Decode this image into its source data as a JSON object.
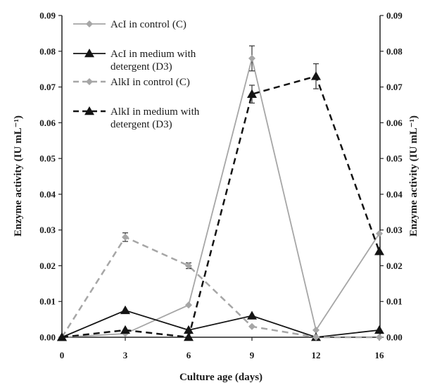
{
  "chart_data": {
    "type": "line",
    "xlabel": "Culture age (days)",
    "ylabel_left": "Enzyme activity (IU mL⁻¹)",
    "ylabel_right": "Enzyme activity (IU mL⁻¹)",
    "categories": [
      "0",
      "3",
      "6",
      "9",
      "12",
      "16"
    ],
    "yticks_left": [
      "0.00",
      "0.01",
      "0.02",
      "0.03",
      "0.04",
      "0.05",
      "0.06",
      "0.07",
      "0.08",
      "0.09"
    ],
    "yticks_right": [
      "0.00",
      "0.01",
      "0.02",
      "0.03",
      "0.04",
      "0.05",
      "0.06",
      "0.07",
      "0.08",
      "0.09"
    ],
    "ylim": [
      0,
      0.09
    ],
    "grid": false,
    "legend_position": "top-left",
    "series": [
      {
        "name": "AcI in control (C)",
        "values": [
          0.0,
          0.001,
          0.009,
          0.078,
          0.002,
          0.029
        ],
        "color": "#a6a6a6",
        "dash": "solid",
        "marker": "diamond",
        "errors": [
          0.0,
          0.0,
          0.0,
          0.0035,
          0.0,
          0.0
        ]
      },
      {
        "name": "AcI in medium with detergent (D3)",
        "values": [
          0.0,
          0.0075,
          0.002,
          0.006,
          0.0,
          0.002
        ],
        "color": "#141414",
        "dash": "solid",
        "marker": "triangle",
        "errors": [
          0.0,
          0.0,
          0.0,
          0.0,
          0.0,
          0.0
        ]
      },
      {
        "name": "AlkI in control (C)",
        "values": [
          0.0,
          0.028,
          0.02,
          0.003,
          0.0,
          0.0
        ],
        "color": "#a6a6a6",
        "dash": "dashed",
        "marker": "diamond",
        "errors": [
          0.0,
          0.0012,
          0.0008,
          0.0,
          0.0,
          0.0
        ]
      },
      {
        "name": "AlkI in medium with detergent (D3)",
        "values": [
          0.0,
          0.002,
          0.0,
          0.068,
          0.073,
          0.024
        ],
        "color": "#141414",
        "dash": "dashed",
        "marker": "triangle",
        "errors": [
          0.0,
          0.0,
          0.0,
          0.0025,
          0.0035,
          0.0
        ]
      }
    ]
  },
  "legend": [
    {
      "lines": [
        "AcI in control (C)"
      ]
    },
    {
      "lines": [
        "AcI in medium with",
        "detergent (D3)"
      ]
    },
    {
      "lines": [
        "AlkI in control (C)"
      ]
    },
    {
      "lines": [
        "AlkI in medium with",
        "detergent (D3)"
      ]
    }
  ]
}
